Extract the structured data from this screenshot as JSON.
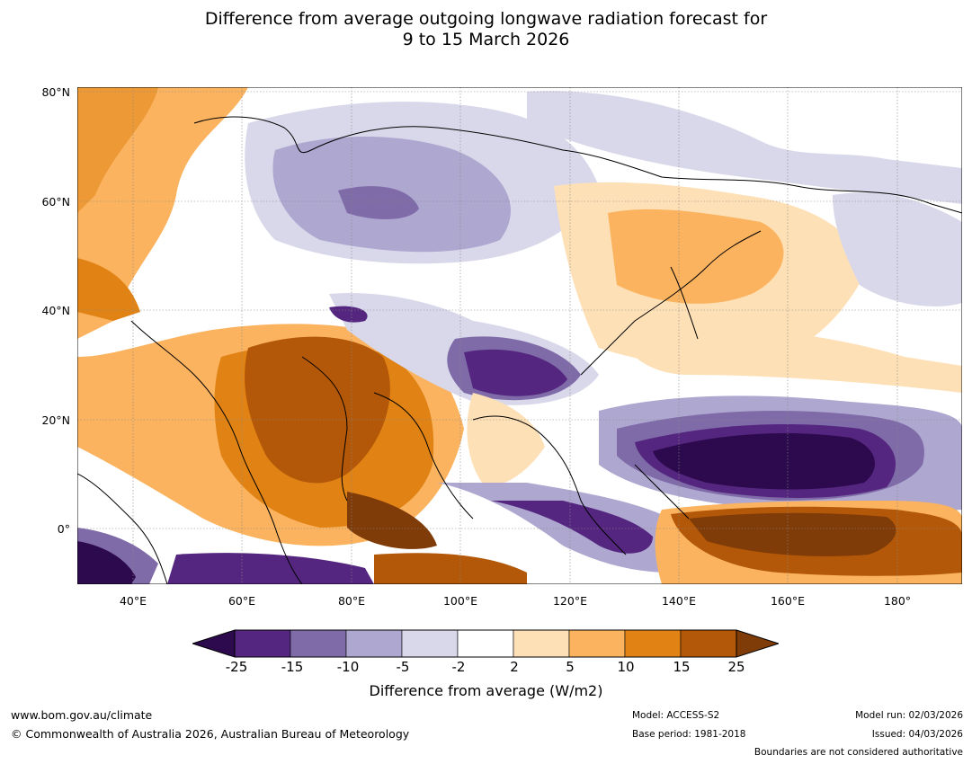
{
  "title": {
    "line1": "Difference from average outgoing longwave radiation forecast for",
    "line2": "9 to 15 March 2026"
  },
  "map": {
    "lat_labels": [
      "80°N",
      "60°N",
      "40°N",
      "20°N",
      "0°"
    ],
    "lon_labels": [
      "40°E",
      "60°E",
      "80°E",
      "100°E",
      "120°E",
      "140°E",
      "160°E",
      "180°"
    ]
  },
  "legend": {
    "ticks": [
      "-25",
      "-15",
      "-10",
      "-5",
      "-2",
      "2",
      "5",
      "10",
      "15",
      "25"
    ],
    "bins": [
      {
        "range": "< -25",
        "color": "#2d0a4e"
      },
      {
        "range": "-25 to -15",
        "color": "#54267f"
      },
      {
        "range": "-15 to -10",
        "color": "#7f6ba8"
      },
      {
        "range": "-10 to -5",
        "color": "#aea7d0"
      },
      {
        "range": "-5 to -2",
        "color": "#d8d8ea"
      },
      {
        "range": "-2 to 2",
        "color": "#ffffff"
      },
      {
        "range": "2 to 5",
        "color": "#fee0b6"
      },
      {
        "range": "5 to 10",
        "color": "#fbb35f"
      },
      {
        "range": "10 to 15",
        "color": "#e08314"
      },
      {
        "range": "15 to 25",
        "color": "#b35808"
      },
      {
        "range": "> 25",
        "color": "#7f3b08"
      }
    ],
    "label": "Difference from average (W/m2)"
  },
  "footer": {
    "website": "www.bom.gov.au/climate",
    "copyright": "© Commonwealth of Australia 2026, Australian Bureau of Meteorology",
    "model": "Model: ACCESS-S2",
    "base_period": "Base period: 1981-2018",
    "model_run": "Model run: 02/03/2026",
    "issued": "Issued: 04/03/2026",
    "disclaimer": "Boundaries are not considered authoritative"
  }
}
